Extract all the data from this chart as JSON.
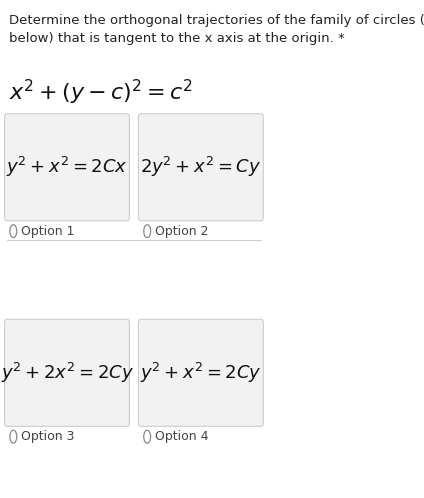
{
  "title": "Determine the orthogonal trajectories of the family of circles (equation\nbelow) that is tangent to the x axis at the origin. *",
  "main_equation": "$x^2 + (y - c)^2 = c^2$",
  "options": [
    {
      "label": "Option 1",
      "equation": "$y^2 + x^2 = 2Cx$"
    },
    {
      "label": "Option 2",
      "equation": "$2y^2 + x^2 = Cy$"
    },
    {
      "label": "Option 3",
      "equation": "$y^2 + 2x^2 = 2Cy$"
    },
    {
      "label": "Option 4",
      "equation": "$y^2 + x^2 = 2Cy$"
    }
  ],
  "bg_color": "#ffffff",
  "box_color": "#f2f2f2",
  "box_edge_color": "#cccccc",
  "title_fontsize": 9.5,
  "eq_fontsize": 13,
  "option_label_fontsize": 9,
  "main_eq_fontsize": 16,
  "title_color": "#222222",
  "option_label_color": "#444444"
}
